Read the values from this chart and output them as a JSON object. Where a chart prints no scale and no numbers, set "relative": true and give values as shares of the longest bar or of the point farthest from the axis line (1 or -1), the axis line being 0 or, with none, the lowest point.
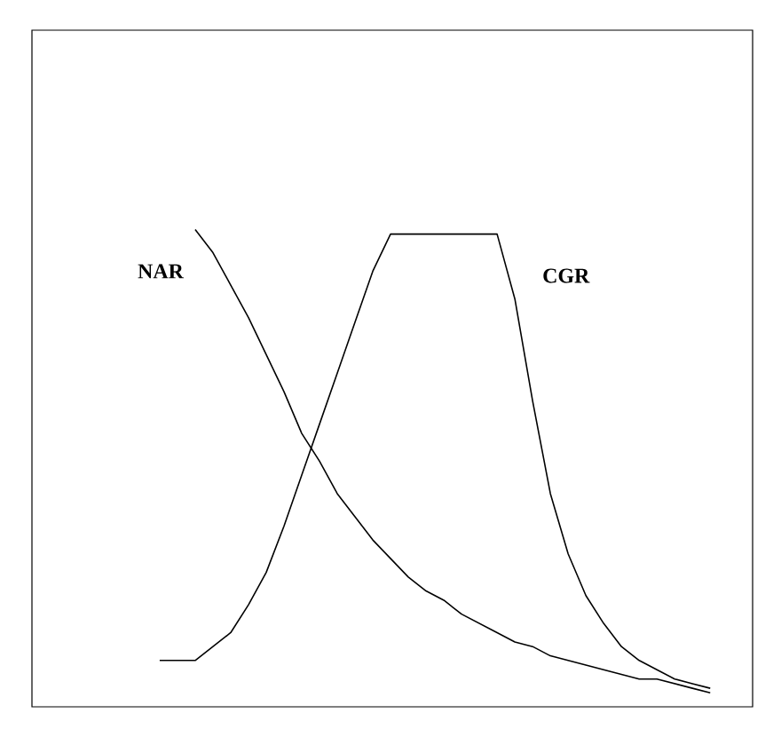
{
  "chart_data": {
    "type": "line",
    "relative": true,
    "legend": false,
    "grid": false,
    "marker": "none",
    "line_style": "solid",
    "categories": [
      null,
      null,
      null,
      null,
      null,
      null,
      null,
      null,
      null,
      null,
      null,
      null,
      null,
      null,
      null,
      null,
      null,
      null,
      null,
      null,
      null,
      null,
      null,
      null,
      null,
      null,
      null,
      null,
      null,
      null,
      null,
      null
    ],
    "series": [
      {
        "name": "NAR",
        "color": "#000000",
        "values": [
          null,
          null,
          1.0,
          0.95,
          0.88,
          0.81,
          0.73,
          0.65,
          0.56,
          0.5,
          0.43,
          0.38,
          0.33,
          0.29,
          0.25,
          0.22,
          0.2,
          0.17,
          0.15,
          0.13,
          0.11,
          0.1,
          0.08,
          0.07,
          0.06,
          0.05,
          0.04,
          0.03,
          0.03,
          0.02,
          0.01,
          0.0
        ]
      },
      {
        "name": "CGR",
        "color": "#000000",
        "values": [
          0.07,
          0.07,
          0.07,
          0.1,
          0.13,
          0.19,
          0.26,
          0.36,
          0.47,
          0.58,
          0.69,
          0.8,
          0.91,
          0.99,
          0.99,
          0.99,
          0.99,
          0.99,
          0.99,
          0.99,
          0.85,
          0.63,
          0.43,
          0.3,
          0.21,
          0.15,
          0.1,
          0.07,
          0.05,
          0.03,
          0.02,
          0.01
        ]
      }
    ]
  }
}
